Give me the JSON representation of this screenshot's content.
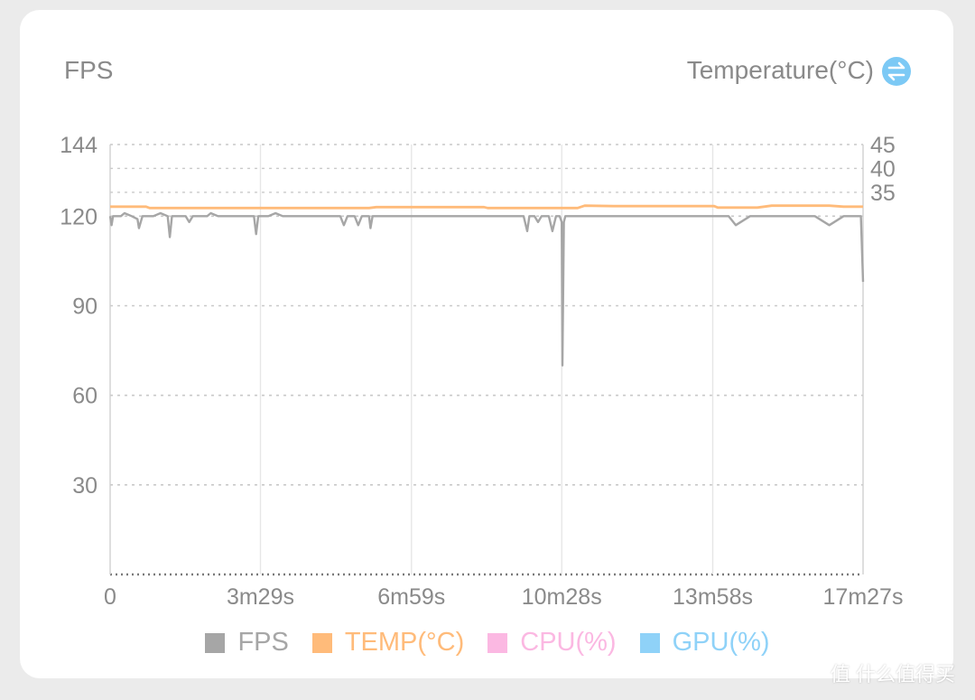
{
  "header": {
    "left_axis_title": "FPS",
    "right_axis_title": "Temperature(°C)"
  },
  "icons": {
    "swap": "swap-vertical-icon"
  },
  "colors": {
    "fps": "#a6a6a6",
    "temp": "#ffbb7a",
    "cpu": "#fbb8e2",
    "gpu": "#8fd2f8",
    "swap_icon_bg": "#7cc9f5",
    "grid": "#c9c9c9",
    "tick_text": "#8a8a8a"
  },
  "legend": [
    {
      "label": "FPS",
      "color": "#a6a6a6"
    },
    {
      "label": "TEMP(°C)",
      "color": "#ffbb7a"
    },
    {
      "label": "CPU(%)",
      "color": "#fbb8e2"
    },
    {
      "label": "GPU(%)",
      "color": "#8fd2f8"
    }
  ],
  "watermark": "值 什么值得买",
  "chart_data": {
    "type": "line",
    "x_unit": "seconds",
    "x_range": [
      0,
      1047
    ],
    "x_ticks": [
      {
        "value": 0,
        "label": "0"
      },
      {
        "value": 209,
        "label": "3m29s"
      },
      {
        "value": 419,
        "label": "6m59s"
      },
      {
        "value": 628,
        "label": "10m28s"
      },
      {
        "value": 838,
        "label": "13m58s"
      },
      {
        "value": 1047,
        "label": "17m27s"
      }
    ],
    "y_left": {
      "range": [
        0,
        144
      ],
      "ticks": [
        30,
        60,
        90,
        120,
        144
      ]
    },
    "y_right": {
      "range": [
        -45,
        45
      ],
      "ticks": [
        35,
        40,
        45
      ]
    },
    "grid": true,
    "legend_position": "bottom-center",
    "series": [
      {
        "name": "FPS",
        "axis": "left",
        "x": [
          0,
          2,
          4,
          8,
          15,
          20,
          30,
          38,
          40,
          45,
          55,
          60,
          70,
          80,
          83,
          86,
          95,
          105,
          110,
          115,
          120,
          135,
          140,
          150,
          160,
          170,
          180,
          190,
          200,
          203,
          206,
          210,
          220,
          230,
          240,
          250,
          260,
          280,
          300,
          320,
          325,
          330,
          340,
          345,
          350,
          360,
          362,
          365,
          370,
          380,
          390,
          400,
          420,
          440,
          460,
          480,
          500,
          520,
          540,
          560,
          575,
          580,
          583,
          590,
          595,
          600,
          610,
          615,
          620,
          625,
          628,
          629,
          631,
          633,
          635,
          640,
          660,
          680,
          700,
          720,
          740,
          760,
          780,
          800,
          820,
          840,
          860,
          870,
          890,
          900,
          920,
          940,
          960,
          980,
          1000,
          1020,
          1040,
          1044,
          1047
        ],
        "values": [
          120,
          117,
          120,
          120,
          120,
          121,
          120,
          119,
          116,
          120,
          120,
          120,
          121,
          120,
          113,
          120,
          120,
          120,
          118,
          120,
          120,
          120,
          121,
          120,
          120,
          120,
          120,
          120,
          120,
          114,
          120,
          120,
          120,
          121,
          120,
          120,
          120,
          120,
          120,
          120,
          117,
          120,
          120,
          117,
          120,
          120,
          116,
          120,
          120,
          120,
          120,
          120,
          120,
          120,
          120,
          120,
          120,
          120,
          120,
          120,
          120,
          115,
          120,
          120,
          118,
          120,
          120,
          115,
          120,
          120,
          118,
          70,
          118,
          120,
          120,
          120,
          120,
          120,
          120,
          120,
          120,
          120,
          120,
          120,
          120,
          120,
          120,
          117,
          120,
          120,
          120,
          120,
          120,
          120,
          117,
          120,
          120,
          120,
          98
        ]
      },
      {
        "name": "TEMP(°C)",
        "axis": "right",
        "x": [
          0,
          15,
          50,
          55,
          120,
          200,
          360,
          370,
          450,
          520,
          525,
          600,
          650,
          660,
          700,
          780,
          840,
          845,
          900,
          920,
          1000,
          1020,
          1047
        ],
        "values": [
          32,
          32,
          32,
          31.7,
          31.7,
          31.7,
          31.7,
          31.9,
          31.9,
          31.9,
          31.7,
          31.7,
          31.7,
          32.2,
          32.1,
          32.1,
          32.1,
          31.8,
          31.8,
          32.2,
          32.2,
          32.0,
          32.0
        ]
      }
    ]
  }
}
